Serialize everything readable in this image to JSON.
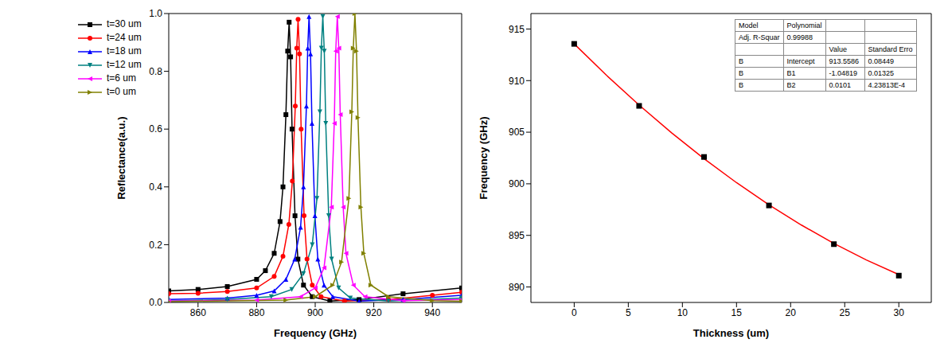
{
  "chart_data": [
    {
      "type": "line",
      "x_label": "Frequency (GHz)",
      "y_label": "Reflectance(a.u.)",
      "xlim": [
        850,
        950
      ],
      "xticks": [
        860,
        880,
        900,
        920,
        940
      ],
      "ylim": [
        0,
        1
      ],
      "yticks": [
        {
          "value": 0,
          "label": "0.0"
        },
        0.2,
        0.4,
        0.6,
        0.8,
        {
          "value": 1,
          "label": "1.0"
        }
      ],
      "legend": "upper left",
      "series": [
        {
          "name": "t=30 um",
          "color": "#000000",
          "marker": "square",
          "x": [
            850,
            860,
            870,
            880,
            883,
            886,
            888,
            889,
            890,
            890.6,
            891.1,
            891.6,
            892.1,
            893.1,
            894.1,
            896,
            899,
            905,
            915,
            930,
            950
          ],
          "values": [
            0.04,
            0.045,
            0.055,
            0.08,
            0.11,
            0.17,
            0.28,
            0.4,
            0.65,
            0.87,
            0.97,
            0.85,
            0.6,
            0.3,
            0.15,
            0.06,
            0.02,
            0.005,
            0.01,
            0.03,
            0.05
          ]
        },
        {
          "name": "t=24 um",
          "color": "#ff0000",
          "marker": "circle",
          "x": [
            850,
            860,
            870,
            880,
            886,
            889,
            891,
            892.2,
            893.2,
            893.7,
            894.15,
            894.65,
            895.2,
            896.2,
            897.2,
            899,
            902,
            910,
            925,
            940,
            950
          ],
          "values": [
            0.03,
            0.032,
            0.038,
            0.05,
            0.09,
            0.16,
            0.27,
            0.42,
            0.68,
            0.88,
            0.98,
            0.86,
            0.6,
            0.3,
            0.15,
            0.06,
            0.02,
            0.005,
            0.01,
            0.025,
            0.035
          ]
        },
        {
          "name": "t=18 um",
          "color": "#0000ff",
          "marker": "triangle-up",
          "x": [
            850,
            870,
            880,
            886,
            890,
            893,
            895,
            896,
            897,
            897.45,
            897.9,
            898.4,
            898.9,
            899.9,
            900.9,
            903,
            906,
            915,
            930,
            950
          ],
          "values": [
            0.01,
            0.015,
            0.025,
            0.04,
            0.08,
            0.15,
            0.26,
            0.4,
            0.68,
            0.88,
            0.99,
            0.86,
            0.62,
            0.3,
            0.15,
            0.06,
            0.02,
            0.005,
            0.01,
            0.025
          ]
        },
        {
          "name": "t=12 um",
          "color": "#008080",
          "marker": "triangle-down",
          "x": [
            850,
            870,
            885,
            892,
            896,
            899,
            900.6,
            901.6,
            902.1,
            902.6,
            903.1,
            903.6,
            904.6,
            905.6,
            908,
            912,
            925,
            950
          ],
          "values": [
            0.005,
            0.01,
            0.02,
            0.045,
            0.1,
            0.2,
            0.36,
            0.66,
            0.88,
            0.99,
            0.87,
            0.62,
            0.3,
            0.15,
            0.05,
            0.015,
            0.005,
            0.015
          ]
        },
        {
          "name": "t=6 um",
          "color": "#ff00ff",
          "marker": "triangle-left",
          "x": [
            850,
            880,
            895,
            900,
            903,
            905.5,
            906.5,
            907,
            907.55,
            908.05,
            908.55,
            909.55,
            910.5,
            913,
            917,
            930,
            950
          ],
          "values": [
            0.005,
            0.008,
            0.02,
            0.05,
            0.12,
            0.33,
            0.62,
            0.87,
            0.99,
            0.88,
            0.65,
            0.33,
            0.17,
            0.06,
            0.02,
            0.006,
            0.01
          ]
        },
        {
          "name": "t=0 um",
          "color": "#808000",
          "marker": "triangle-right",
          "x": [
            850,
            890,
            900,
            906,
            909,
            911.5,
            912.5,
            913,
            913.56,
            914.1,
            914.6,
            915.6,
            916.6,
            919,
            925,
            940,
            950
          ],
          "values": [
            0.003,
            0.008,
            0.02,
            0.06,
            0.14,
            0.36,
            0.66,
            0.88,
            1.0,
            0.87,
            0.64,
            0.33,
            0.17,
            0.06,
            0.02,
            0.006,
            0.004
          ]
        }
      ]
    },
    {
      "type": "scatter",
      "x_label": "Thickness (um)",
      "y_label": "Frequency (GHz)",
      "xlim": [
        -4,
        33
      ],
      "xticks": [
        0,
        5,
        10,
        15,
        20,
        25,
        30
      ],
      "ylim": [
        888.5,
        916.5
      ],
      "yticks": [
        890,
        895,
        900,
        905,
        910,
        915
      ],
      "series": [
        {
          "type": "scatter",
          "color": "#000000",
          "marker": "square",
          "x": [
            0,
            6,
            12,
            18,
            24,
            30
          ],
          "values": [
            913.56,
            907.55,
            902.6,
            897.9,
            894.15,
            891.1
          ]
        },
        {
          "type": "line",
          "color": "#ff0000",
          "x": [
            0,
            3,
            6,
            9,
            12,
            15,
            18,
            21,
            24,
            27,
            30
          ],
          "values": [
            913.56,
            910.5,
            907.63,
            904.94,
            902.43,
            900.11,
            897.96,
            896.0,
            894.22,
            892.62,
            891.2
          ]
        }
      ],
      "table": [
        [
          "Model",
          "Polynomial",
          null,
          null
        ],
        [
          "Adj. R-Squar",
          "0.99988",
          null,
          null
        ],
        [
          null,
          null,
          "Value",
          "Standard Erro"
        ],
        [
          "B",
          "Intercept",
          "913.5586",
          "0.08449"
        ],
        [
          "B",
          "B1",
          "-1.04819",
          "0.01325"
        ],
        [
          "B",
          "B2",
          "0.0101",
          "4.23813E-4"
        ]
      ]
    }
  ]
}
